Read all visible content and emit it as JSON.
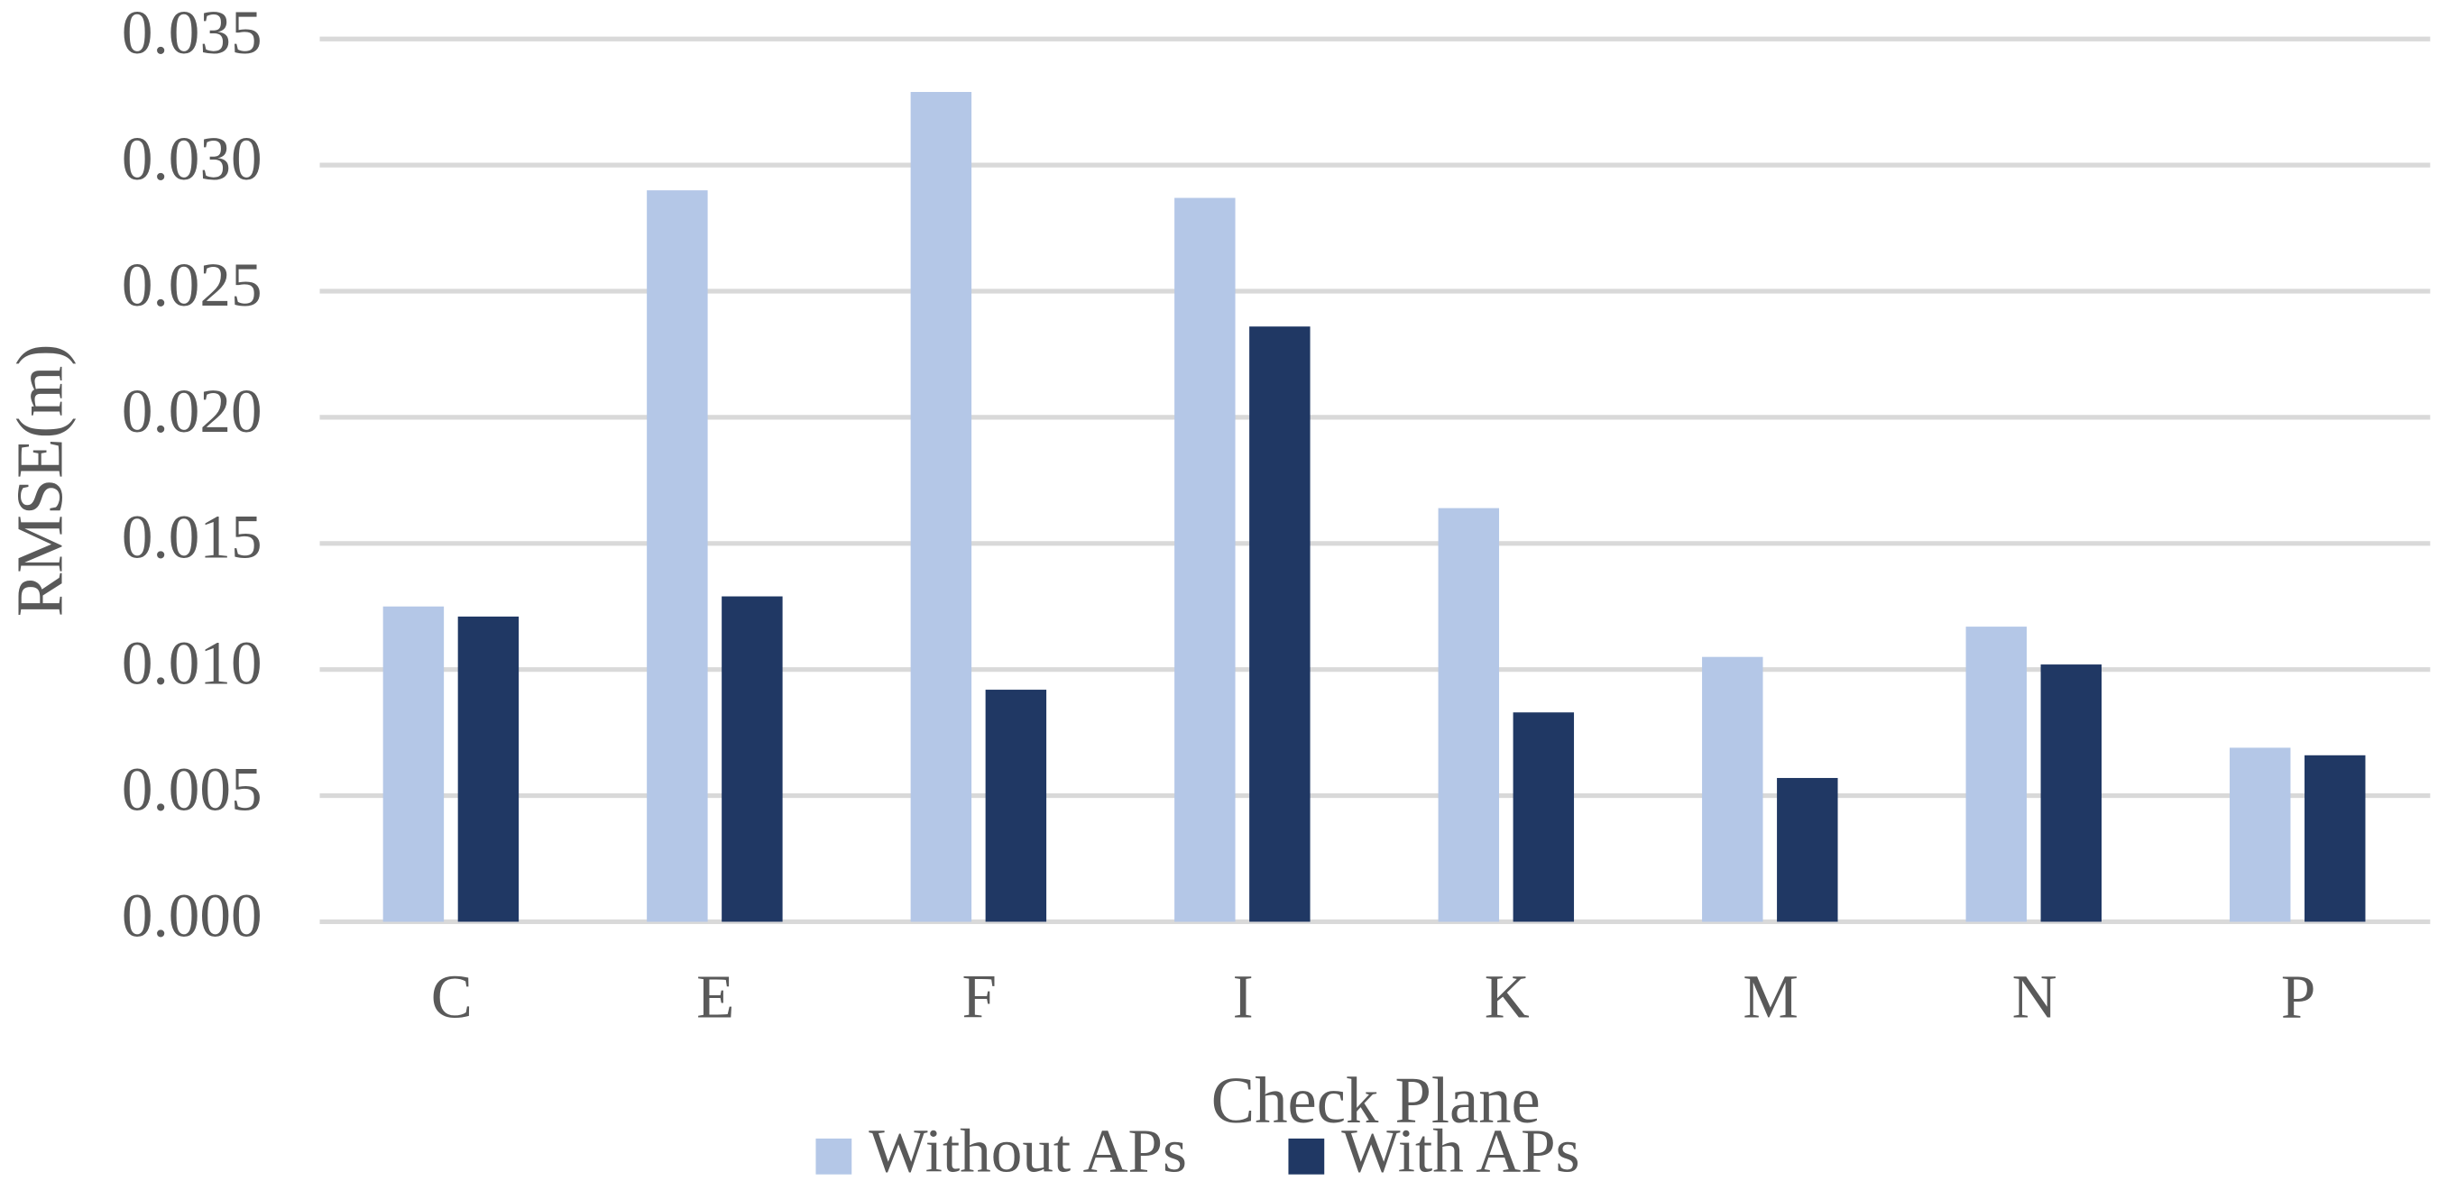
{
  "chart_data": {
    "type": "bar",
    "x_label": "Check Plane",
    "y_label": "RMSE(m)",
    "categories": [
      "C",
      "E",
      "F",
      "I",
      "K",
      "M",
      "N",
      "P"
    ],
    "series": [
      {
        "name": "Without APs",
        "color": "#b4c7e7",
        "values": [
          0.0125,
          0.029,
          0.0329,
          0.0287,
          0.0164,
          0.0105,
          0.0117,
          0.0069
        ]
      },
      {
        "name": "With APs",
        "color": "#203864",
        "values": [
          0.0121,
          0.0129,
          0.0092,
          0.0236,
          0.0083,
          0.0057,
          0.0102,
          0.0066
        ]
      }
    ],
    "ylim": [
      0,
      0.035
    ],
    "yticks": [
      {
        "value": 0,
        "label": "0.000"
      },
      0.005,
      {
        "value": 0.01,
        "label": "0.010"
      },
      0.015,
      {
        "value": 0.02,
        "label": "0.020"
      },
      0.025,
      {
        "value": 0.03,
        "label": "0.030"
      },
      0.035
    ],
    "grid": true,
    "legend": "bottom"
  }
}
